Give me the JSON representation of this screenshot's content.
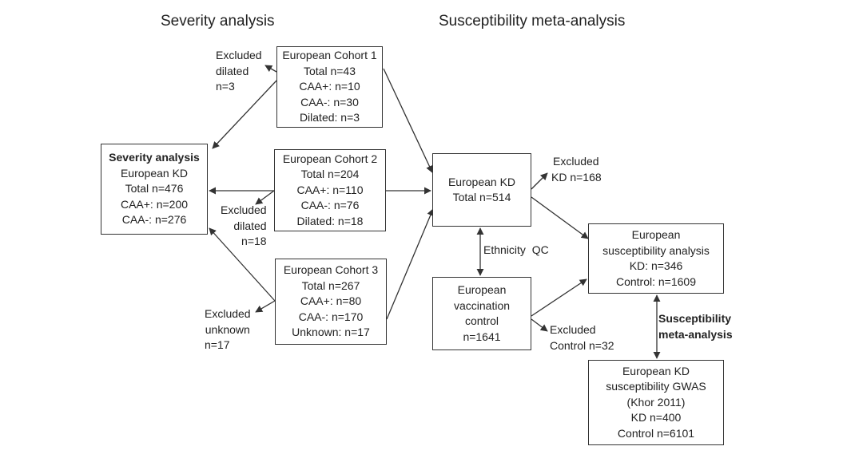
{
  "headings": {
    "severity": "Severity analysis",
    "susceptibility": "Susceptibility meta-analysis"
  },
  "boxes": {
    "cohort1": [
      "European Cohort 1",
      "Total n=43",
      "CAA+: n=10",
      "CAA-: n=30",
      "Dilated: n=3"
    ],
    "cohort2": [
      "European Cohort 2",
      "Total n=204",
      "CAA+: n=110",
      "CAA-: n=76",
      "Dilated: n=18"
    ],
    "cohort3": [
      "European Cohort 3",
      "Total n=267",
      "CAA+: n=80",
      "CAA-: n=170",
      "Unknown: n=17"
    ],
    "severity": [
      "Severity analysis",
      "European KD",
      "Total n=476",
      "CAA+: n=200",
      "CAA-: n=276"
    ],
    "european_kd": [
      "European KD",
      "Total n=514"
    ],
    "vaccination": [
      "European",
      "vaccination",
      "control",
      "n=1641"
    ],
    "susceptibility_analysis": [
      "European",
      "susceptibility analysis",
      "KD: n=346",
      "Control: n=1609"
    ],
    "gwas": [
      "European KD",
      "susceptibility GWAS",
      "(Khor 2011)",
      "KD n=400",
      "Control n=6101"
    ]
  },
  "labels": {
    "excluded_dilated_1": [
      "Excluded",
      "dilated",
      "n=3"
    ],
    "excluded_dilated_2": [
      "Excluded",
      "dilated",
      "n=18"
    ],
    "excluded_unknown": [
      "Excluded",
      "unknown",
      "n=17"
    ],
    "excluded_kd": [
      "Excluded",
      "KD n=168"
    ],
    "excluded_control": [
      "Excluded",
      "Control n=32"
    ],
    "ethnicity_qc": "Ethnicity  QC",
    "meta_analysis": [
      "Susceptibility",
      "meta-analysis"
    ]
  },
  "colors": {
    "line": "#333333",
    "text": "#222222"
  }
}
